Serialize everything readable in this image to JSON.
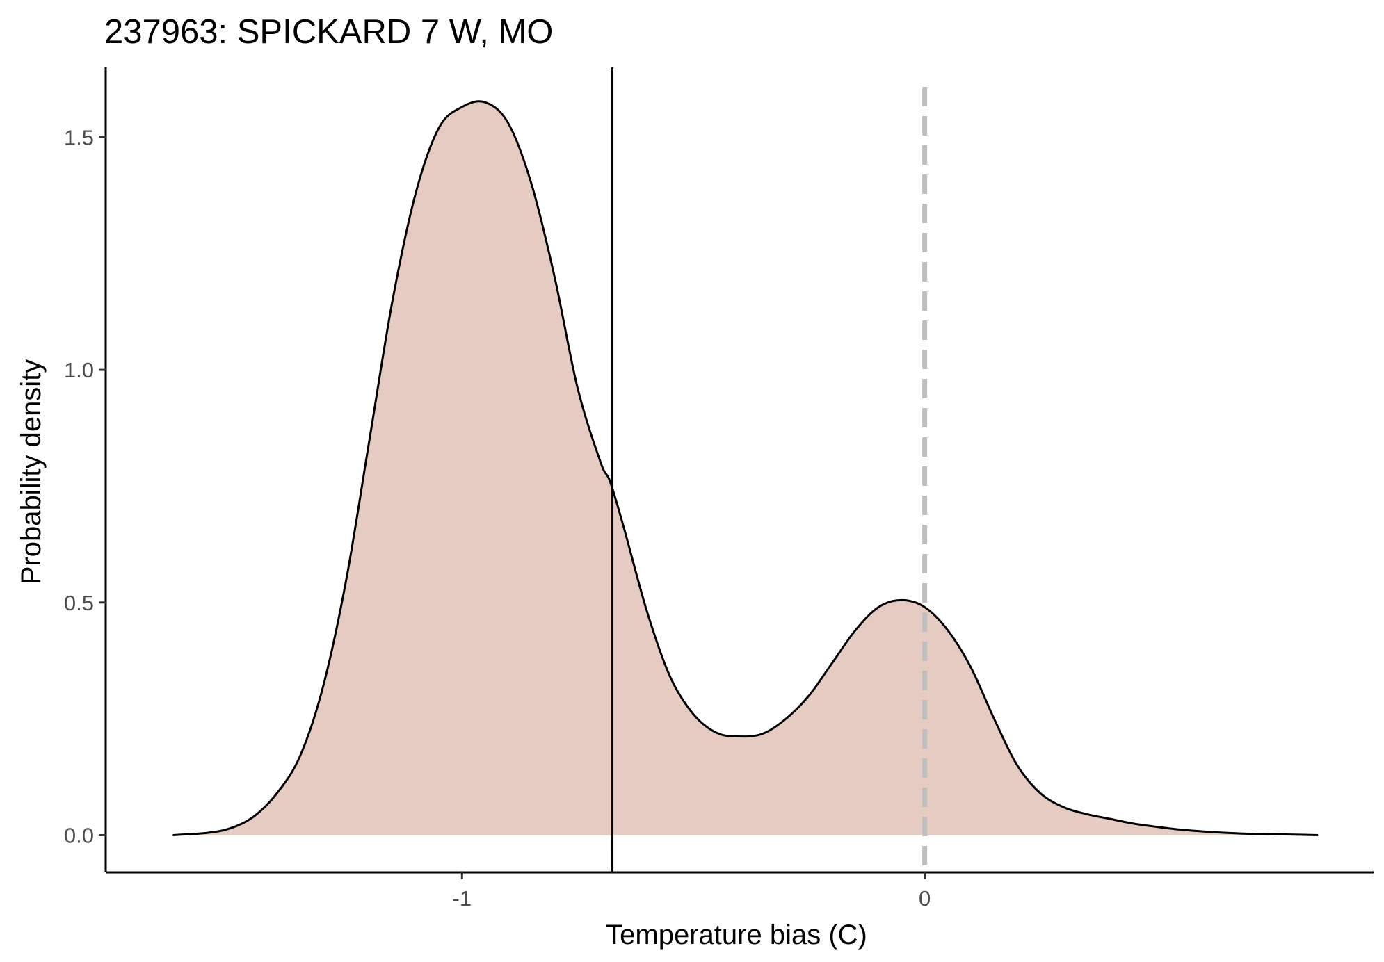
{
  "chart_data": {
    "type": "area",
    "title": "237963: SPICKARD 7 W, MO",
    "xlabel": "Temperature bias (C)",
    "ylabel": "Probability density",
    "xlim": [
      -1.77,
      0.97
    ],
    "ylim": [
      -0.08,
      1.65
    ],
    "x_ticks": [
      {
        "value": -1,
        "label": "-1"
      },
      {
        "value": 0,
        "label": "0"
      }
    ],
    "y_ticks": [
      {
        "value": 0.0,
        "label": "0.0"
      },
      {
        "value": 0.5,
        "label": "0.5"
      },
      {
        "value": 1.0,
        "label": "1.0"
      },
      {
        "value": 1.5,
        "label": "1.5"
      }
    ],
    "grid": false,
    "legend": "none",
    "series": [
      {
        "x": [
          -1.625,
          -1.55,
          -1.5,
          -1.45,
          -1.4,
          -1.35,
          -1.3,
          -1.25,
          -1.2,
          -1.15,
          -1.1,
          -1.05,
          -1.0,
          -0.95,
          -0.9,
          -0.85,
          -0.8,
          -0.75,
          -0.7,
          -0.68,
          -0.65,
          -0.6,
          -0.55,
          -0.5,
          -0.45,
          -0.4,
          -0.35,
          -0.3,
          -0.25,
          -0.2,
          -0.15,
          -0.1,
          -0.05,
          0.0,
          0.05,
          0.1,
          0.15,
          0.2,
          0.25,
          0.3,
          0.35,
          0.4,
          0.45,
          0.5,
          0.55,
          0.6,
          0.65,
          0.7,
          0.75,
          0.8,
          0.85
        ],
        "y": [
          0.0,
          0.005,
          0.015,
          0.04,
          0.09,
          0.17,
          0.32,
          0.55,
          0.85,
          1.15,
          1.38,
          1.52,
          1.565,
          1.575,
          1.53,
          1.4,
          1.2,
          0.96,
          0.8,
          0.76,
          0.66,
          0.48,
          0.34,
          0.26,
          0.22,
          0.212,
          0.218,
          0.25,
          0.3,
          0.37,
          0.44,
          0.49,
          0.505,
          0.49,
          0.44,
          0.36,
          0.25,
          0.15,
          0.09,
          0.06,
          0.045,
          0.035,
          0.025,
          0.018,
          0.012,
          0.008,
          0.005,
          0.003,
          0.002,
          0.001,
          0.0
        ],
        "fill": "#e5cbc2",
        "stroke": "#000000"
      }
    ],
    "reference_lines": [
      {
        "axis": "x",
        "value": -0.675,
        "style": "solid",
        "color": "#000000"
      },
      {
        "axis": "x",
        "value": 0.0,
        "style": "dashed",
        "color": "#bebebe"
      }
    ]
  }
}
